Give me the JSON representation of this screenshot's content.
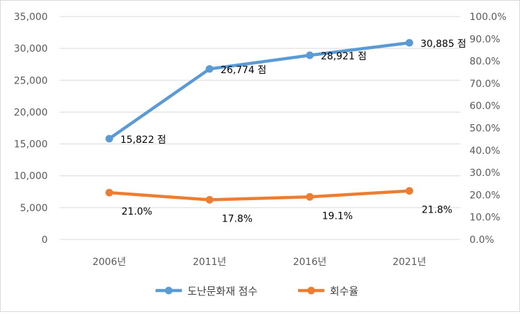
{
  "chart_data": {
    "type": "line",
    "categories": [
      "2006년",
      "2011년",
      "2016년",
      "2021년"
    ],
    "series": [
      {
        "name": "도난문화재 점수",
        "axis": "left",
        "color": "#5b9bd5",
        "values": [
          15822,
          26774,
          28921,
          30885
        ],
        "labels": [
          "15,822 점",
          "26,774 점",
          "28,921 점",
          "30,885 점"
        ]
      },
      {
        "name": "회수율",
        "axis": "right",
        "color": "#ed7d31",
        "values": [
          21.0,
          17.8,
          19.1,
          21.8
        ],
        "labels": [
          "21.0%",
          "17.8%",
          "19.1%",
          "21.8%"
        ]
      }
    ],
    "y_left": {
      "range": [
        0,
        35000
      ],
      "ticks": [
        "0",
        "5,000",
        "10,000",
        "15,000",
        "20,000",
        "25,000",
        "30,000",
        "35,000"
      ]
    },
    "y_right": {
      "range": [
        0,
        100
      ],
      "ticks": [
        "0.0%",
        "10.0%",
        "20.0%",
        "30.0%",
        "40.0%",
        "50.0%",
        "60.0%",
        "70.0%",
        "80.0%",
        "90.0%",
        "100.0%"
      ]
    },
    "gridlines": true,
    "legend_position": "bottom"
  }
}
